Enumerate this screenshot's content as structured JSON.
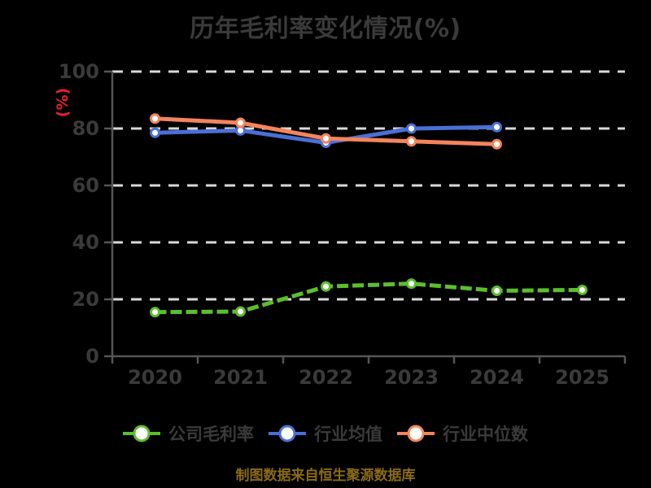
{
  "title": "历年毛利率变化情况(%)",
  "caption": "制图数据来自恒生聚源数据库",
  "ylabel": "(%)",
  "colors": {
    "background": "#000000",
    "title_text": "#3a3a3a",
    "tick_text": "#3a3a3a",
    "axis": "#555555",
    "gridline": "#d9d9d9",
    "ylabel_red": "#e8202c",
    "caption_gold": "#8a6b15",
    "marker_fill": "#ffffff"
  },
  "chart_data": {
    "type": "line",
    "title": "历年毛利率变化情况(%)",
    "xlabel": "",
    "ylabel": "(%)",
    "categories": [
      "2020",
      "2021",
      "2022",
      "2023",
      "2024",
      "2025"
    ],
    "series": [
      {
        "name": "公司毛利率",
        "color": "#5cbe2d",
        "style": "sketch-dashed",
        "values": [
          15.5,
          15.7,
          24.5,
          25.5,
          23.0,
          23.3
        ]
      },
      {
        "name": "行业均值",
        "color": "#4a6fd6",
        "style": "solid",
        "values": [
          78.5,
          79.3,
          75.0,
          80.0,
          80.5,
          null
        ]
      },
      {
        "name": "行业中位数",
        "color": "#f4845c",
        "style": "solid",
        "values": [
          83.5,
          82.0,
          76.5,
          75.5,
          74.5,
          null
        ]
      }
    ],
    "ylim": [
      0,
      100
    ],
    "yticks": [
      0,
      20,
      40,
      60,
      80,
      100
    ],
    "grid": "dashed-horizontal-white",
    "legend_position": "bottom",
    "source_note": "制图数据来自恒生聚源数据库"
  }
}
